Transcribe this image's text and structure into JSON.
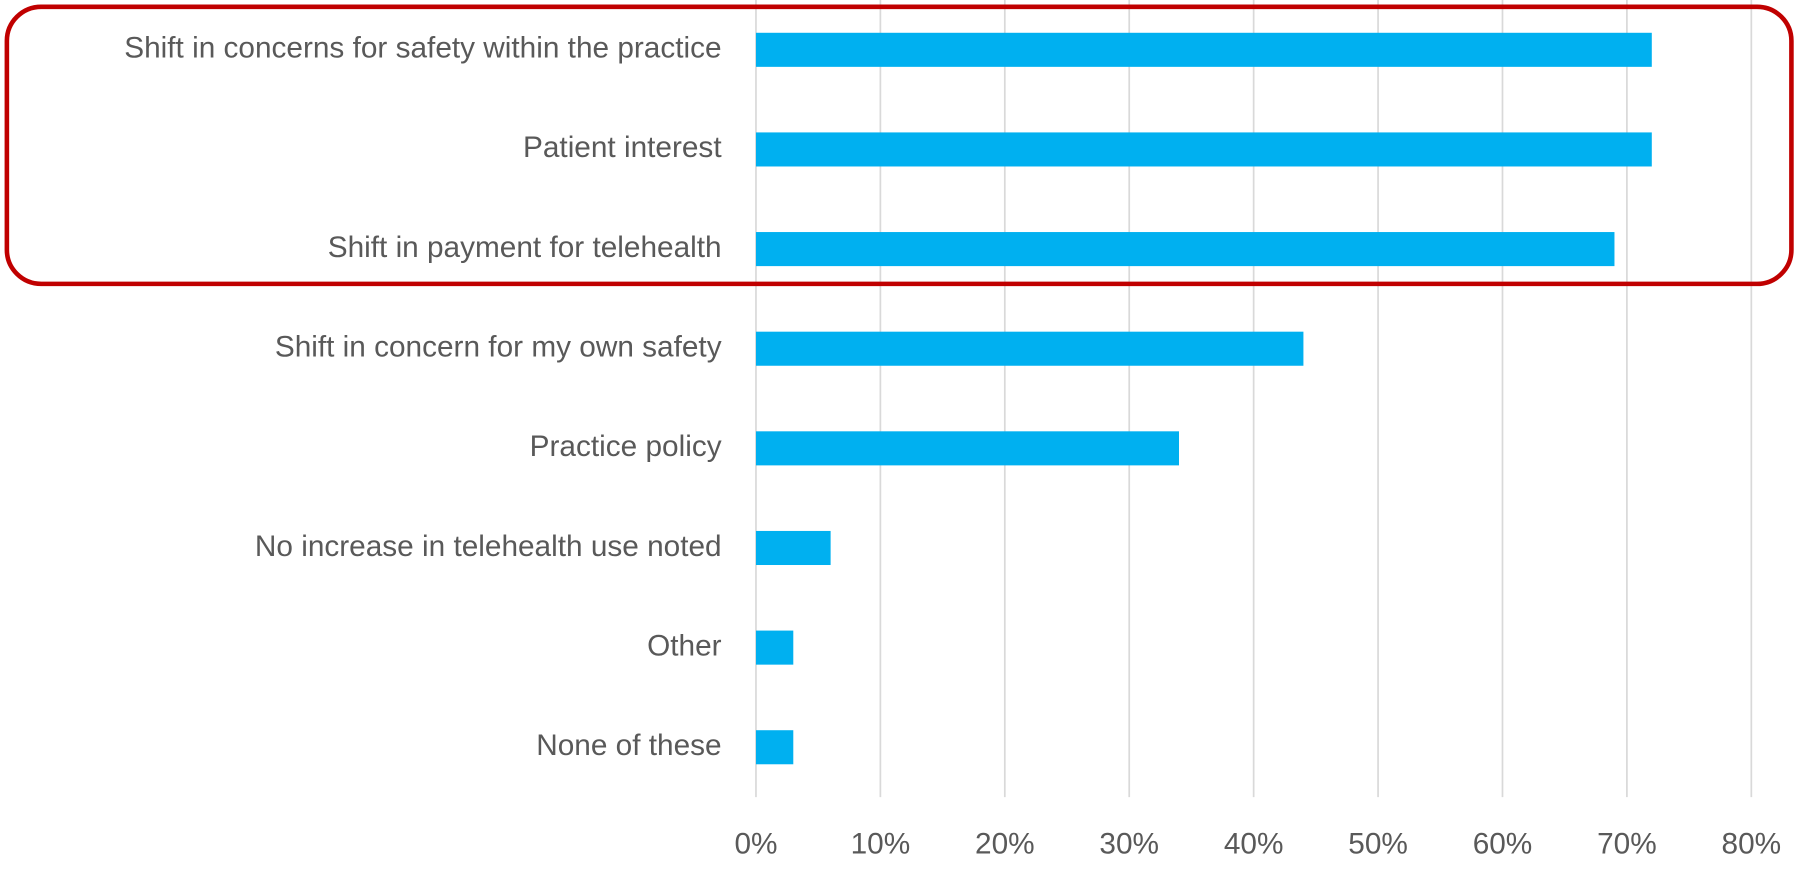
{
  "chart_data": {
    "type": "bar",
    "orientation": "horizontal",
    "categories": [
      "Shift in concerns for safety within the practice",
      "Patient interest",
      "Shift in payment for telehealth",
      "Shift in concern for my own safety",
      "Practice policy",
      "No increase in telehealth use noted",
      "Other",
      "None of these"
    ],
    "values": [
      72,
      72,
      69,
      44,
      34,
      6,
      3,
      3
    ],
    "color": "#00b0f0",
    "xlim": [
      0,
      80
    ],
    "xticks": [
      {
        "value": 0,
        "label": "0%"
      },
      {
        "value": 10,
        "label": "10%"
      },
      {
        "value": 20,
        "label": "20%"
      },
      {
        "value": 30,
        "label": "30%"
      },
      {
        "value": 40,
        "label": "40%"
      },
      {
        "value": 50,
        "label": "50%"
      },
      {
        "value": 60,
        "label": "60%"
      },
      {
        "value": 70,
        "label": "70%"
      },
      {
        "value": 80,
        "label": "80%"
      }
    ],
    "grid": true
  }
}
